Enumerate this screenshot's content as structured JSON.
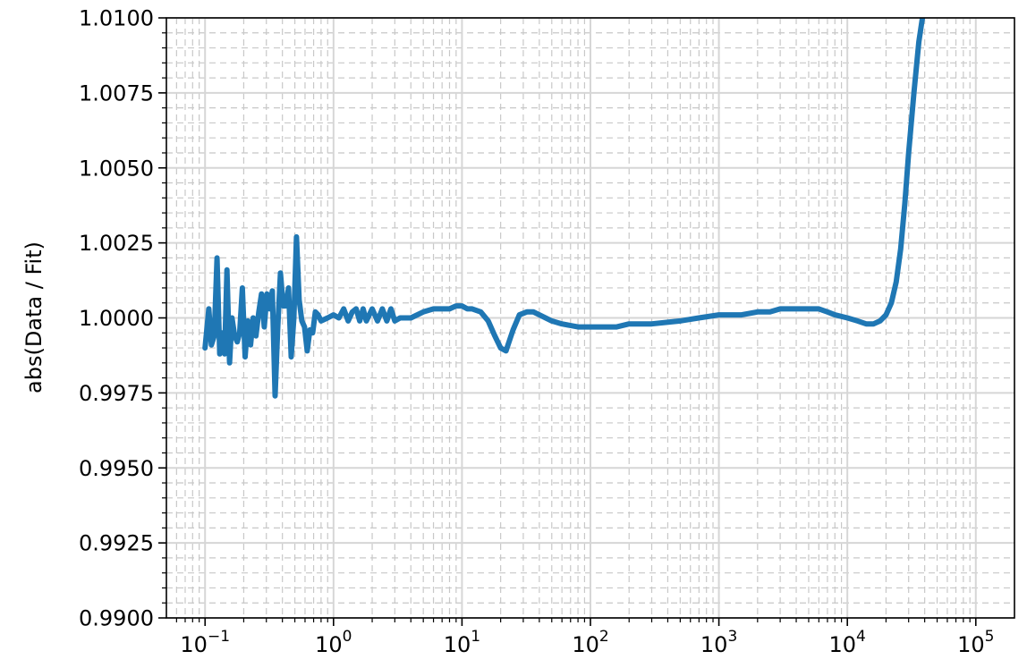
{
  "chart_data": {
    "type": "line",
    "title": "",
    "xlabel": "",
    "ylabel": "abs(Data / Fit)",
    "x_scale": "log",
    "xlim": [
      0.05,
      200000
    ],
    "ylim": [
      0.99,
      1.01
    ],
    "grid": {
      "major": true,
      "minor": true
    },
    "x_ticks": [
      {
        "value": 0.1,
        "base": "10",
        "exp": "−1"
      },
      {
        "value": 1,
        "base": "10",
        "exp": "0"
      },
      {
        "value": 10,
        "base": "10",
        "exp": "1"
      },
      {
        "value": 100,
        "base": "10",
        "exp": "2"
      },
      {
        "value": 1000,
        "base": "10",
        "exp": "3"
      },
      {
        "value": 10000,
        "base": "10",
        "exp": "4"
      },
      {
        "value": 100000,
        "base": "10",
        "exp": "5"
      }
    ],
    "y_ticks": [
      {
        "value": 0.99,
        "label": "0.9900"
      },
      {
        "value": 0.9925,
        "label": "0.9925"
      },
      {
        "value": 0.995,
        "label": "0.9950"
      },
      {
        "value": 0.9975,
        "label": "0.9975"
      },
      {
        "value": 1.0,
        "label": "1.0000"
      },
      {
        "value": 1.0025,
        "label": "1.0025"
      },
      {
        "value": 1.005,
        "label": "1.0050"
      },
      {
        "value": 1.0075,
        "label": "1.0075"
      },
      {
        "value": 1.01,
        "label": "1.0100"
      }
    ],
    "series": [
      {
        "color": "#1f77b4",
        "x": [
          0.1,
          0.107,
          0.112,
          0.118,
          0.124,
          0.13,
          0.136,
          0.142,
          0.148,
          0.155,
          0.162,
          0.17,
          0.178,
          0.186,
          0.195,
          0.205,
          0.215,
          0.226,
          0.237,
          0.249,
          0.262,
          0.275,
          0.289,
          0.303,
          0.318,
          0.334,
          0.351,
          0.368,
          0.386,
          0.405,
          0.425,
          0.446,
          0.468,
          0.491,
          0.515,
          0.54,
          0.567,
          0.595,
          0.624,
          0.655,
          0.688,
          0.722,
          0.76,
          0.8,
          0.9,
          1.0,
          1.1,
          1.2,
          1.3,
          1.4,
          1.5,
          1.6,
          1.7,
          1.8,
          2.0,
          2.2,
          2.4,
          2.6,
          2.8,
          3.0,
          3.3,
          3.6,
          4.0,
          5.0,
          6.0,
          7.0,
          8.0,
          9.0,
          10.0,
          11.0,
          12.0,
          14.0,
          16.0,
          18.0,
          20.0,
          22.0,
          25.0,
          28.0,
          32.0,
          36.0,
          40.0,
          50.0,
          60.0,
          80.0,
          100.0,
          130.0,
          160.0,
          200.0,
          300.0,
          500.0,
          700.0,
          1000.0,
          1500.0,
          2000.0,
          2500.0,
          3000.0,
          4000.0,
          5000.0,
          6000.0,
          7000.0,
          8000.0,
          10000.0,
          12000.0,
          14000.0,
          16000.0,
          18000.0,
          20000.0,
          22000.0,
          24000.0,
          26000.0,
          28000.0,
          30000.0,
          33000.0,
          36000.0,
          40000.0
        ],
        "y": [
          0.999,
          1.0003,
          0.9991,
          0.9994,
          1.002,
          0.9988,
          0.9995,
          0.9988,
          1.0016,
          0.9985,
          1.0,
          0.9994,
          0.9992,
          0.9995,
          1.001,
          0.9987,
          0.9999,
          0.9991,
          1.0,
          0.9994,
          1.0002,
          1.0008,
          0.9997,
          1.0008,
          1.0003,
          1.0009,
          0.9974,
          0.9997,
          1.0015,
          1.0004,
          1.0004,
          1.001,
          0.9987,
          1.0,
          1.0027,
          1.0006,
          0.9999,
          0.9997,
          0.9989,
          0.9996,
          0.9995,
          1.0002,
          1.0001,
          0.9999,
          1.0,
          1.0001,
          1.0,
          1.0003,
          0.9999,
          1.0002,
          1.0003,
          0.9999,
          1.0003,
          0.9999,
          1.0003,
          0.9999,
          1.0003,
          0.9999,
          1.0003,
          0.9999,
          1.0,
          1.0,
          1.0,
          1.0002,
          1.0003,
          1.0003,
          1.0003,
          1.0004,
          1.0004,
          1.0003,
          1.0003,
          1.0002,
          0.9999,
          0.9994,
          0.999,
          0.9989,
          0.9996,
          1.0001,
          1.0002,
          1.0002,
          1.0001,
          0.9999,
          0.9998,
          0.9997,
          0.9997,
          0.9997,
          0.9997,
          0.9998,
          0.9998,
          0.9999,
          1.0,
          1.0001,
          1.0001,
          1.0002,
          1.0002,
          1.0003,
          1.0003,
          1.0003,
          1.0003,
          1.0002,
          1.0001,
          1.0,
          0.9999,
          0.9998,
          0.9998,
          0.9999,
          1.0001,
          1.0005,
          1.0012,
          1.0023,
          1.0038,
          1.0055,
          1.0075,
          1.0092,
          1.0105
        ]
      }
    ]
  }
}
